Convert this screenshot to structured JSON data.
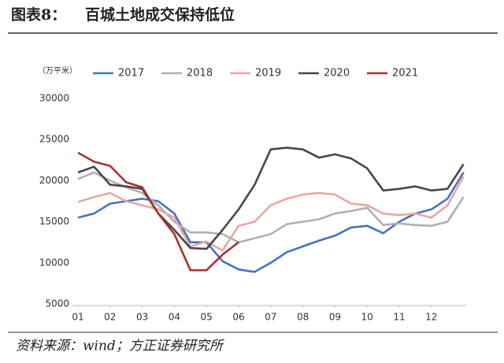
{
  "chart_data": {
    "type": "line",
    "figure_label": "图表8：",
    "title": "百城土地成交保持低位",
    "y_unit": "（万平米）",
    "source": "资料来源：wind；方正证券研究所",
    "x": [
      1,
      1.5,
      2,
      2.5,
      3,
      3.5,
      4,
      4.5,
      5,
      5.5,
      6,
      6.5,
      7,
      7.5,
      8,
      8.5,
      9,
      9.5,
      10,
      10.5,
      11,
      11.5,
      12,
      12.5,
      13
    ],
    "xlim": [
      1,
      13
    ],
    "xticks": [
      {
        "value": 1,
        "label": "01"
      },
      {
        "value": 2,
        "label": "02"
      },
      {
        "value": 3,
        "label": "03"
      },
      {
        "value": 4,
        "label": "04"
      },
      {
        "value": 5,
        "label": "05"
      },
      {
        "value": 6,
        "label": "06"
      },
      {
        "value": 7,
        "label": "07"
      },
      {
        "value": 8,
        "label": "08"
      },
      {
        "value": 9,
        "label": "09"
      },
      {
        "value": 10,
        "label": "10"
      },
      {
        "value": 11,
        "label": "11"
      },
      {
        "value": 12,
        "label": "12"
      }
    ],
    "ylim": [
      5000,
      30000
    ],
    "yticks": [
      5000,
      10000,
      15000,
      20000,
      25000,
      30000
    ],
    "grid": false,
    "legend": "top",
    "series": [
      {
        "name": "2017",
        "color": "#4472c4",
        "values": [
          15500,
          16000,
          17200,
          17500,
          17800,
          17500,
          16000,
          12500,
          12500,
          10200,
          9200,
          8900,
          10000,
          11300,
          12000,
          12700,
          13300,
          14300,
          14500,
          13600,
          15000,
          16000,
          16500,
          17800,
          21000
        ]
      },
      {
        "name": "2018",
        "color": "#b0b0b0",
        "values": [
          20200,
          21000,
          20000,
          19200,
          18500,
          17000,
          15000,
          13700,
          13700,
          13500,
          12500,
          13000,
          13500,
          14700,
          15000,
          15300,
          16000,
          16300,
          16700,
          14600,
          14800,
          14600,
          14500,
          15000,
          18000
        ]
      },
      {
        "name": "2019",
        "color": "#e8a7a5",
        "values": [
          17400,
          18000,
          18500,
          17500,
          17000,
          16500,
          15500,
          12000,
          12600,
          11500,
          14500,
          15000,
          17000,
          17800,
          18300,
          18500,
          18300,
          17200,
          17000,
          16000,
          15800,
          16000,
          15500,
          17000,
          20500
        ]
      },
      {
        "name": "2020",
        "color": "#474747",
        "values": [
          21000,
          21700,
          19500,
          19300,
          19000,
          16000,
          14000,
          11800,
          11700,
          14000,
          16500,
          19500,
          23800,
          24000,
          23800,
          22800,
          23200,
          22700,
          21500,
          18800,
          19000,
          19300,
          18800,
          19000,
          22000
        ]
      },
      {
        "name": "2021",
        "color": "#a83232",
        "values": [
          23400,
          22300,
          21800,
          19800,
          19200,
          16000,
          13500,
          9100,
          9100,
          11000,
          12500,
          null,
          null,
          null,
          null,
          null,
          null,
          null,
          null,
          null,
          null,
          null,
          null,
          null,
          null
        ]
      }
    ]
  }
}
